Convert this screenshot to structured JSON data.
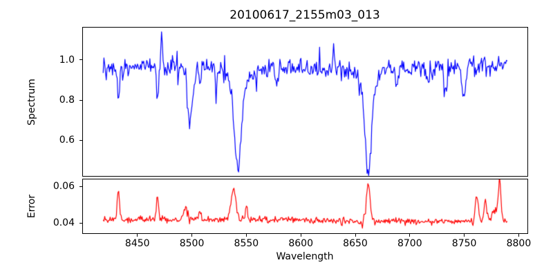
{
  "chart_data": {
    "type": "line",
    "title": "20100617_2155m03_013",
    "xlabel": "Wavelength",
    "xlim": [
      8399.4,
      8808.6
    ],
    "xticks": [
      {
        "v": 8450,
        "label": "8450"
      },
      {
        "v": 8500,
        "label": "8500"
      },
      {
        "v": 8550,
        "label": "8550"
      },
      {
        "v": 8600,
        "label": "8600"
      },
      {
        "v": 8650,
        "label": "8650"
      },
      {
        "v": 8700,
        "label": "8700"
      },
      {
        "v": 8750,
        "label": "8750"
      },
      {
        "v": 8800,
        "label": "8800"
      }
    ],
    "x_start": 8418,
    "x_end": 8790,
    "n_points": 520,
    "grid": false,
    "legend": "none",
    "panels": [
      {
        "name": "spectrum",
        "ylabel": "Spectrum",
        "color": "#0000ff",
        "ylim": [
          0.419,
          1.164
        ],
        "yticks": [
          {
            "v": 1.0,
            "label": "1.0"
          },
          {
            "v": 0.8,
            "label": "0.8"
          },
          {
            "v": 0.6,
            "label": "0.6"
          }
        ],
        "continuum": 0.965,
        "noise_sigma": 0.021,
        "absorption_features": [
          {
            "center": 8432,
            "depth": 0.17,
            "sigma": 1.0
          },
          {
            "center": 8468,
            "depth": 0.16,
            "sigma": 1.0
          },
          {
            "center": 8498,
            "depth": 0.28,
            "sigma": 2.6
          },
          {
            "center": 8507,
            "depth": 0.1,
            "sigma": 0.9
          },
          {
            "center": 8522,
            "depth": 0.13,
            "sigma": 0.9
          },
          {
            "center": 8542,
            "depth": 0.42,
            "sigma": 3.0
          },
          {
            "center": 8542,
            "depth": 0.1,
            "sigma": 9.0
          },
          {
            "center": 8578,
            "depth": 0.11,
            "sigma": 1.0
          },
          {
            "center": 8662,
            "depth": 0.43,
            "sigma": 2.9
          },
          {
            "center": 8662,
            "depth": 0.09,
            "sigma": 8.0
          },
          {
            "center": 8688,
            "depth": 0.09,
            "sigma": 1.2
          },
          {
            "center": 8717,
            "depth": 0.1,
            "sigma": 1.3
          },
          {
            "center": 8733,
            "depth": 0.12,
            "sigma": 1.4
          },
          {
            "center": 8750,
            "depth": 0.16,
            "sigma": 1.6
          }
        ],
        "emission_spikes": [
          {
            "center": 8472,
            "height": 0.15,
            "sigma": 0.7
          },
          {
            "center": 8630,
            "height": 0.12,
            "sigma": 0.7
          }
        ]
      },
      {
        "name": "error",
        "ylabel": "Error",
        "color": "#ff0000",
        "ylim": [
          0.034,
          0.0642
        ],
        "yticks": [
          {
            "v": 0.06,
            "label": "0.06"
          },
          {
            "v": 0.04,
            "label": "0.04"
          }
        ],
        "baseline": 0.0412,
        "noise_sigma": 0.0009,
        "spikes": [
          {
            "center": 8432,
            "height": 0.017,
            "sigma": 1.0
          },
          {
            "center": 8468,
            "height": 0.013,
            "sigma": 1.0
          },
          {
            "center": 8494,
            "height": 0.006,
            "sigma": 2.0
          },
          {
            "center": 8507,
            "height": 0.004,
            "sigma": 1.2
          },
          {
            "center": 8538,
            "height": 0.017,
            "sigma": 2.2
          },
          {
            "center": 8550,
            "height": 0.008,
            "sigma": 0.9
          },
          {
            "center": 8662,
            "height": 0.022,
            "sigma": 1.6
          },
          {
            "center": 8762,
            "height": 0.015,
            "sigma": 1.3
          },
          {
            "center": 8770,
            "height": 0.012,
            "sigma": 1.3
          },
          {
            "center": 8780,
            "height": 0.007,
            "sigma": 3.0
          },
          {
            "center": 8783,
            "height": 0.021,
            "sigma": 1.0
          }
        ]
      }
    ]
  }
}
